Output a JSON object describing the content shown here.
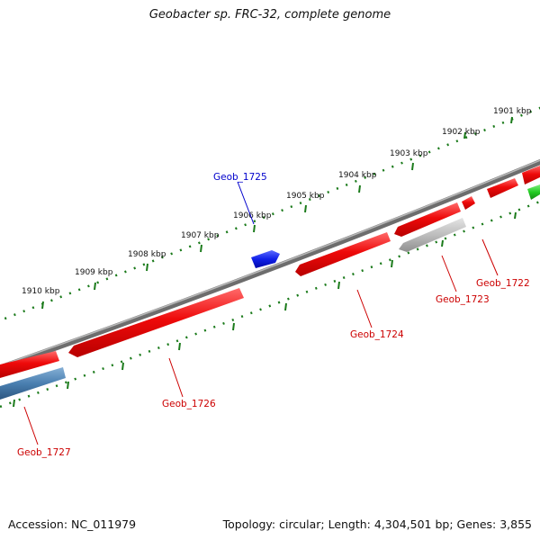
{
  "title": "Geobacter sp. FRC-32, complete genome",
  "footer": {
    "accession": "Accession: NC_011979",
    "summary": "Topology: circular; Length: 4,304,501 bp; Genes: 3,855"
  },
  "ticks": [
    "1901 kbp",
    "1902 kbp",
    "1903 kbp",
    "1904 kbp",
    "1905 kbp",
    "1906 kbp",
    "1907 kbp",
    "1908 kbp",
    "1909 kbp",
    "1910 kbp"
  ],
  "genes": [
    {
      "name": "Geob_1722",
      "strand": "reverse",
      "color": "#e8000e"
    },
    {
      "name": "Geob_1723",
      "strand": "reverse",
      "color": "#b0b0b0"
    },
    {
      "name": "Geob_1724",
      "strand": "reverse",
      "color": "#e8000e"
    },
    {
      "name": "Geob_1725",
      "strand": "forward",
      "color": "#0a14e0"
    },
    {
      "name": "Geob_1726",
      "strand": "reverse",
      "color": "#e8000e"
    },
    {
      "name": "Geob_1727",
      "strand": "reverse",
      "color": "#e8000e"
    }
  ],
  "colors": {
    "backbone": "#777777",
    "tick": "#1a7a1a",
    "forward_label": "#0000cc",
    "reverse_label": "#cc0000",
    "other_green": "#22bb22",
    "other_blue": "#4a7fb0"
  }
}
